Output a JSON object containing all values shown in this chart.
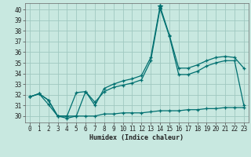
{
  "xlabel": "Humidex (Indice chaleur)",
  "bg_color": "#c8e8e0",
  "grid_color": "#a0c8c0",
  "line_color": "#007070",
  "xlim": [
    -0.5,
    23.5
  ],
  "ylim": [
    29.4,
    40.6
  ],
  "xticks": [
    0,
    1,
    2,
    3,
    4,
    5,
    6,
    7,
    8,
    9,
    10,
    11,
    12,
    13,
    14,
    15,
    16,
    17,
    18,
    19,
    20,
    21,
    22,
    23
  ],
  "yticks": [
    30,
    31,
    32,
    33,
    34,
    35,
    36,
    37,
    38,
    39,
    40
  ],
  "curve1_y": [
    31.8,
    32.1,
    31.5,
    30.0,
    30.0,
    32.2,
    32.3,
    31.0,
    32.6,
    33.0,
    33.3,
    33.5,
    33.8,
    35.5,
    40.3,
    37.6,
    34.5,
    34.5,
    34.8,
    35.2,
    35.5,
    35.6,
    35.5,
    34.5
  ],
  "curve2_y": [
    31.8,
    32.1,
    31.1,
    30.0,
    29.8,
    30.0,
    32.3,
    31.3,
    32.3,
    32.7,
    32.9,
    33.1,
    33.4,
    35.2,
    40.1,
    37.5,
    33.9,
    33.9,
    34.2,
    34.7,
    35.0,
    35.2,
    35.2,
    31.0
  ],
  "curve3_y": [
    31.8,
    32.1,
    31.5,
    30.0,
    30.0,
    30.0,
    30.0,
    30.0,
    30.2,
    30.2,
    30.3,
    30.3,
    30.3,
    30.4,
    30.5,
    30.5,
    30.5,
    30.6,
    30.6,
    30.7,
    30.7,
    30.8,
    30.8,
    30.8
  ]
}
